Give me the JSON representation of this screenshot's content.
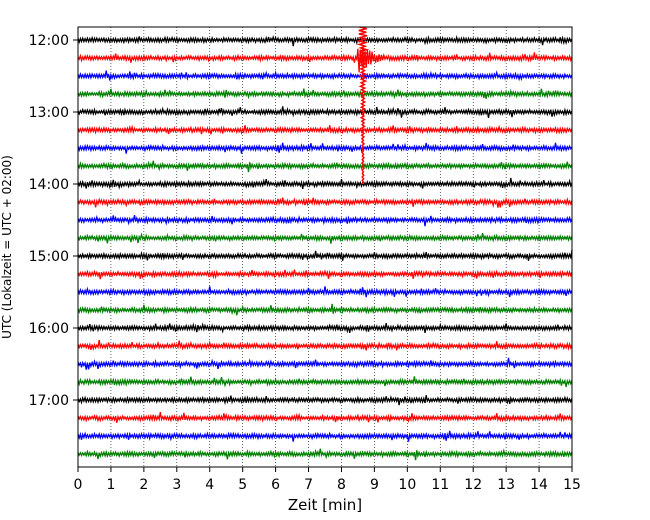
{
  "chart_data": {
    "type": "line",
    "xlabel": "Zeit  [min]",
    "ylabel": "UTC (Lokalzeit = UTC + 02:00)",
    "xlim": [
      0,
      15
    ],
    "x_ticks": [
      "0",
      "1",
      "2",
      "3",
      "4",
      "5",
      "6",
      "7",
      "8",
      "9",
      "10",
      "11",
      "12",
      "13",
      "14",
      "15"
    ],
    "y_ticks": [
      "12:00",
      "13:00",
      "14:00",
      "15:00",
      "16:00",
      "17:00"
    ],
    "row_start": "12:00",
    "row_interval_min": 15,
    "row_colors": [
      "#000000",
      "#ff0000",
      "#0000ff",
      "#008000"
    ],
    "grid": "vertical dotted",
    "rows": [
      {
        "time": "12:00",
        "color": "#000000"
      },
      {
        "time": "12:15",
        "color": "#ff0000"
      },
      {
        "time": "12:30",
        "color": "#0000ff"
      },
      {
        "time": "12:45",
        "color": "#008000"
      },
      {
        "time": "13:00",
        "color": "#000000"
      },
      {
        "time": "13:15",
        "color": "#ff0000"
      },
      {
        "time": "13:30",
        "color": "#0000ff"
      },
      {
        "time": "13:45",
        "color": "#008000"
      },
      {
        "time": "14:00",
        "color": "#000000"
      },
      {
        "time": "14:15",
        "color": "#ff0000"
      },
      {
        "time": "14:30",
        "color": "#0000ff"
      },
      {
        "time": "14:45",
        "color": "#008000"
      },
      {
        "time": "15:00",
        "color": "#000000"
      },
      {
        "time": "15:15",
        "color": "#ff0000"
      },
      {
        "time": "15:30",
        "color": "#0000ff"
      },
      {
        "time": "15:45",
        "color": "#008000"
      },
      {
        "time": "16:00",
        "color": "#000000"
      },
      {
        "time": "16:15",
        "color": "#ff0000"
      },
      {
        "time": "16:30",
        "color": "#0000ff"
      },
      {
        "time": "16:45",
        "color": "#008000"
      },
      {
        "time": "17:00",
        "color": "#000000"
      },
      {
        "time": "17:15",
        "color": "#ff0000"
      },
      {
        "time": "17:30",
        "color": "#0000ff"
      },
      {
        "time": "17:45",
        "color": "#008000"
      }
    ],
    "event": {
      "row_time": "12:15",
      "minute": 8.65,
      "description": "large seismic event"
    }
  }
}
